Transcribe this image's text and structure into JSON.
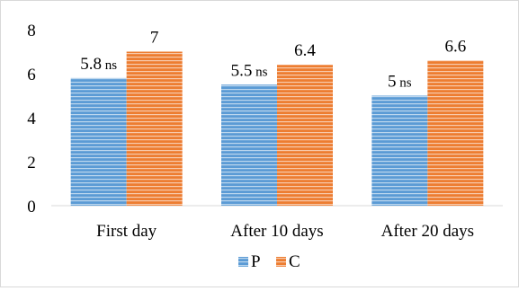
{
  "chart_data": {
    "type": "bar",
    "categories": [
      "First day",
      "After 10 days",
      "After 20 days"
    ],
    "series": [
      {
        "name": "P",
        "values": [
          5.8,
          5.5,
          5
        ],
        "label_suffix": "ns",
        "color": "#5b9bd5",
        "stripe_color": "#bdd7ee"
      },
      {
        "name": "C",
        "values": [
          7,
          6.4,
          6.6
        ],
        "label_suffix": "",
        "color": "#ed7d31",
        "stripe_color": "#f8cbad"
      }
    ],
    "yticks": [
      0,
      2,
      4,
      6,
      8
    ],
    "ylim": [
      0,
      8
    ],
    "title": "",
    "xlabel": "",
    "ylabel": "",
    "grid": false,
    "legend": "bottom-center"
  }
}
